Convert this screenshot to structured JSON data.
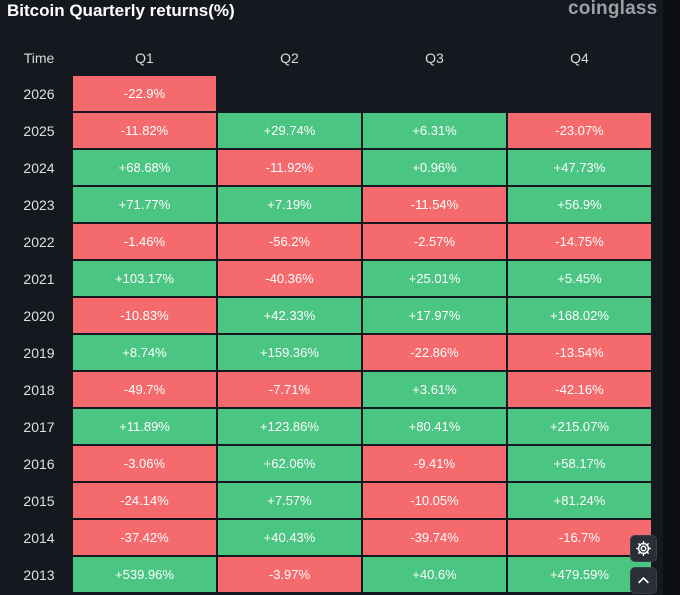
{
  "header": {
    "title": "Bitcoin Quarterly returns(%)",
    "brand": "coinglass"
  },
  "colors": {
    "positive": "#4ac582",
    "negative": "#f46a6d",
    "background": "#15181e"
  },
  "chart_data": {
    "type": "table",
    "title": "Bitcoin Quarterly returns(%)",
    "row_header": "Time",
    "columns": [
      "Q1",
      "Q2",
      "Q3",
      "Q4"
    ],
    "rows": [
      {
        "year": "2026",
        "values": [
          "-22.9%",
          null,
          null,
          null
        ]
      },
      {
        "year": "2025",
        "values": [
          "-11.82%",
          "+29.74%",
          "+6.31%",
          "-23.07%"
        ]
      },
      {
        "year": "2024",
        "values": [
          "+68.68%",
          "-11.92%",
          "+0.96%",
          "+47.73%"
        ]
      },
      {
        "year": "2023",
        "values": [
          "+71.77%",
          "+7.19%",
          "-11.54%",
          "+56.9%"
        ]
      },
      {
        "year": "2022",
        "values": [
          "-1.46%",
          "-56.2%",
          "-2.57%",
          "-14.75%"
        ]
      },
      {
        "year": "2021",
        "values": [
          "+103.17%",
          "-40.36%",
          "+25.01%",
          "+5.45%"
        ]
      },
      {
        "year": "2020",
        "values": [
          "-10.83%",
          "+42.33%",
          "+17.97%",
          "+168.02%"
        ]
      },
      {
        "year": "2019",
        "values": [
          "+8.74%",
          "+159.36%",
          "-22.86%",
          "-13.54%"
        ]
      },
      {
        "year": "2018",
        "values": [
          "-49.7%",
          "-7.71%",
          "+3.61%",
          "-42.16%"
        ]
      },
      {
        "year": "2017",
        "values": [
          "+11.89%",
          "+123.86%",
          "+80.41%",
          "+215.07%"
        ]
      },
      {
        "year": "2016",
        "values": [
          "-3.06%",
          "+62.06%",
          "-9.41%",
          "+58.17%"
        ]
      },
      {
        "year": "2015",
        "values": [
          "-24.14%",
          "+7.57%",
          "-10.05%",
          "+81.24%"
        ]
      },
      {
        "year": "2014",
        "values": [
          "-37.42%",
          "+40.43%",
          "-39.74%",
          "-16.7%"
        ]
      },
      {
        "year": "2013",
        "values": [
          "+539.96%",
          "-3.97%",
          "+40.6%",
          "+479.59%"
        ]
      }
    ]
  },
  "floating_buttons": {
    "settings_icon": "gear-icon",
    "scroll_top_icon": "chevron-up-icon"
  }
}
